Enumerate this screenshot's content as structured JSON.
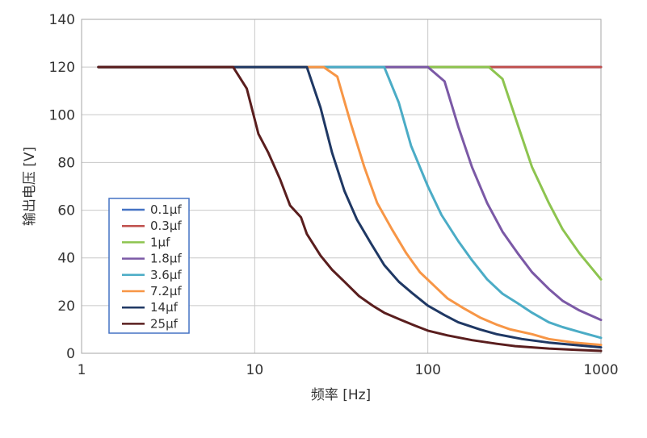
{
  "chart_data": {
    "type": "line",
    "xlabel": "频率 [Hz]",
    "ylabel": "输出电压 [V]",
    "xscale": "log",
    "xlim": [
      1,
      1000
    ],
    "ylim": [
      0,
      140
    ],
    "x_ticks": [
      "1",
      "10",
      "100",
      "1000"
    ],
    "y_ticks": [
      "0",
      "20",
      "40",
      "60",
      "80",
      "100",
      "120",
      "140"
    ],
    "grid": true,
    "legend_position": "left",
    "series": [
      {
        "name": "0.1μf",
        "color": "#4472c4",
        "points": [
          [
            1.25,
            120
          ],
          [
            10,
            120
          ],
          [
            100,
            120
          ],
          [
            1000,
            120
          ]
        ]
      },
      {
        "name": "0.3μf",
        "color": "#c0504d",
        "points": [
          [
            1.25,
            120
          ],
          [
            10,
            120
          ],
          [
            100,
            120
          ],
          [
            1000,
            120
          ]
        ]
      },
      {
        "name": "1μf",
        "color": "#8dc44f",
        "points": [
          [
            1.25,
            120
          ],
          [
            225,
            120
          ],
          [
            270,
            115
          ],
          [
            330,
            96
          ],
          [
            400,
            78
          ],
          [
            500,
            63
          ],
          [
            600,
            52
          ],
          [
            750,
            42
          ],
          [
            1000,
            31
          ]
        ]
      },
      {
        "name": "1.8μf",
        "color": "#7b59a6",
        "points": [
          [
            1.25,
            120
          ],
          [
            100,
            120
          ],
          [
            125,
            114
          ],
          [
            150,
            95
          ],
          [
            180,
            78
          ],
          [
            220,
            63
          ],
          [
            270,
            51
          ],
          [
            330,
            42
          ],
          [
            400,
            34
          ],
          [
            500,
            27
          ],
          [
            600,
            22
          ],
          [
            750,
            18
          ],
          [
            1000,
            14
          ]
        ]
      },
      {
        "name": "3.6μf",
        "color": "#4bacc6",
        "points": [
          [
            1.25,
            120
          ],
          [
            56,
            120
          ],
          [
            68,
            105
          ],
          [
            80,
            87
          ],
          [
            100,
            70
          ],
          [
            120,
            58
          ],
          [
            150,
            47
          ],
          [
            180,
            39
          ],
          [
            220,
            31
          ],
          [
            270,
            25
          ],
          [
            330,
            21
          ],
          [
            400,
            17
          ],
          [
            500,
            13
          ],
          [
            600,
            11
          ],
          [
            750,
            9
          ],
          [
            1000,
            6.5
          ]
        ]
      },
      {
        "name": "7.2μf",
        "color": "#f79646",
        "points": [
          [
            1.25,
            120
          ],
          [
            25,
            120
          ],
          [
            30,
            116
          ],
          [
            36,
            96
          ],
          [
            43,
            78
          ],
          [
            51,
            63
          ],
          [
            62,
            52
          ],
          [
            75,
            42
          ],
          [
            90,
            34
          ],
          [
            110,
            28
          ],
          [
            130,
            23
          ],
          [
            160,
            19
          ],
          [
            200,
            15
          ],
          [
            250,
            12
          ],
          [
            300,
            10
          ],
          [
            400,
            8
          ],
          [
            500,
            6
          ],
          [
            700,
            4.5
          ],
          [
            1000,
            3.5
          ]
        ]
      },
      {
        "name": "14μf",
        "color": "#1f3864",
        "points": [
          [
            1.25,
            120
          ],
          [
            20,
            120
          ],
          [
            24,
            103
          ],
          [
            28,
            84
          ],
          [
            33,
            68
          ],
          [
            39,
            56
          ],
          [
            47,
            46
          ],
          [
            56,
            37
          ],
          [
            68,
            30
          ],
          [
            82,
            25
          ],
          [
            100,
            20
          ],
          [
            125,
            16
          ],
          [
            150,
            13
          ],
          [
            200,
            10
          ],
          [
            250,
            8
          ],
          [
            350,
            6
          ],
          [
            500,
            4.5
          ],
          [
            700,
            3.5
          ],
          [
            1000,
            2.5
          ]
        ]
      },
      {
        "name": "25μf",
        "color": "#5a1e1e",
        "points": [
          [
            1.25,
            120
          ],
          [
            7.5,
            120
          ],
          [
            9,
            111
          ],
          [
            10.5,
            92
          ],
          [
            12,
            84
          ],
          [
            14,
            73
          ],
          [
            16,
            62
          ],
          [
            18.5,
            57
          ],
          [
            20,
            50
          ],
          [
            24,
            41
          ],
          [
            28,
            35
          ],
          [
            33,
            30
          ],
          [
            40,
            24
          ],
          [
            48,
            20
          ],
          [
            56,
            17
          ],
          [
            70,
            14
          ],
          [
            85,
            11.5
          ],
          [
            100,
            9.5
          ],
          [
            130,
            7.5
          ],
          [
            180,
            5.5
          ],
          [
            250,
            4
          ],
          [
            320,
            3
          ],
          [
            400,
            2.5
          ],
          [
            500,
            2
          ],
          [
            700,
            1.5
          ],
          [
            1000,
            1
          ]
        ]
      }
    ]
  }
}
